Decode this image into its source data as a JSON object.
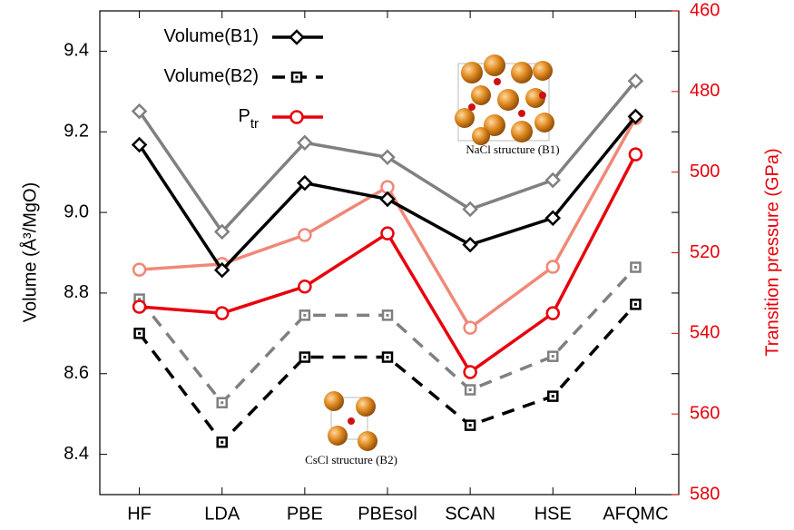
{
  "chart_data": {
    "type": "line",
    "categories": [
      "HF",
      "LDA",
      "PBE",
      "PBEsol",
      "SCAN",
      "HSE",
      "AFQMC"
    ],
    "ylabel": "Volume (Å³/MgO)",
    "y2label": "Transition pressure (GPa)",
    "ylim": [
      8.3,
      9.5
    ],
    "yticks": [
      8.4,
      8.6,
      8.8,
      {
        "value": 9,
        "label": "9.0"
      },
      9.2,
      9.4
    ],
    "y2lim": [
      580,
      460
    ],
    "y2ticks": [
      460,
      480,
      500,
      520,
      540,
      560,
      580
    ],
    "y2color": "#e8000b",
    "annotations": [
      "NaCl structure (B1)",
      "CsCl structure (B2)"
    ],
    "series": [
      {
        "color": "#808080",
        "marker": "diamond",
        "dash": "solid",
        "values": [
          9.251,
          8.952,
          9.173,
          9.137,
          9.008,
          9.08,
          9.326
        ]
      },
      {
        "color": "#808080",
        "marker": "square",
        "dash": "dashed",
        "values": [
          8.785,
          8.528,
          8.745,
          8.745,
          8.56,
          8.643,
          8.864
        ]
      },
      {
        "color": "#f08878",
        "marker": "circle",
        "dash": "solid",
        "axis": "y2",
        "values": [
          524.2,
          522.8,
          515.6,
          503.7,
          538.6,
          523.5,
          486.6
        ]
      },
      {
        "name": "Volume(B1)",
        "color": "#000000",
        "marker": "diamond",
        "dash": "solid",
        "values": [
          9.168,
          8.857,
          9.073,
          9.033,
          8.92,
          8.986,
          9.238
        ]
      },
      {
        "name": "Volume(B2)",
        "color": "#000000",
        "marker": "square",
        "dash": "dashed",
        "values": [
          8.7,
          8.43,
          8.641,
          8.641,
          8.472,
          8.544,
          8.772
        ]
      },
      {
        "name": "P",
        "subscript": "tr",
        "color": "#e8000b",
        "marker": "circle",
        "dash": "solid",
        "axis": "y2",
        "values": [
          533.4,
          535,
          528.4,
          515.2,
          549.6,
          535,
          495.6
        ]
      }
    ]
  }
}
